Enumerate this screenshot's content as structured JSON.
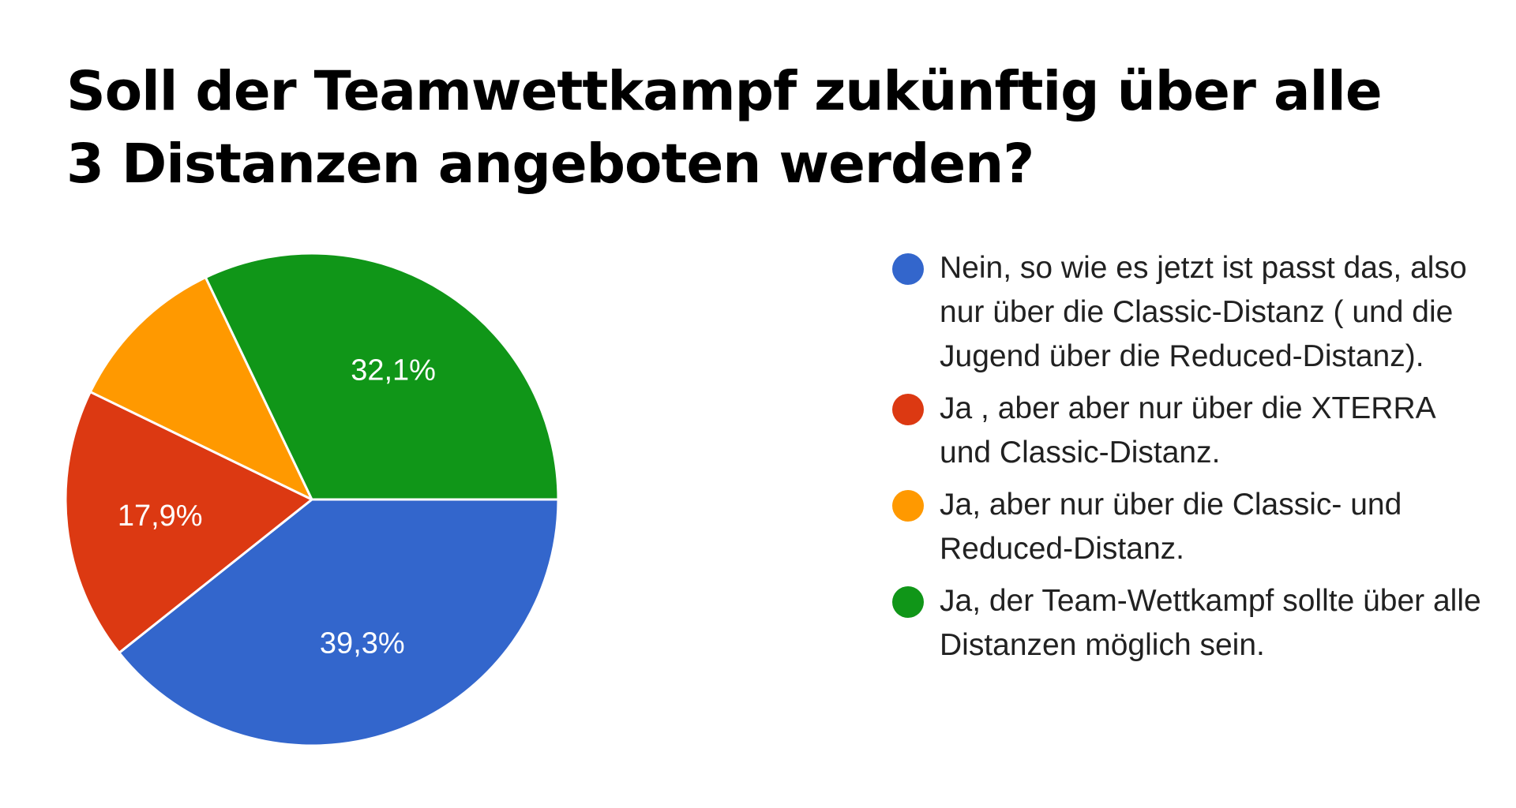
{
  "chart_data": {
    "type": "pie",
    "title_lines": [
      "Soll der Teamwettkampf zukünftig über alle",
      "3 Distanzen angeboten werden?"
    ],
    "slices": [
      {
        "label": "Nein, so wie es jetzt ist passt das, also nur über die Classic-Distanz ( und die Jugend über die Reduced-Distanz).",
        "value": 39.3,
        "value_label": "39,3%",
        "color": "#3366cc"
      },
      {
        "label": "Ja , aber aber nur über die XTERRA und Classic-Distanz.",
        "value": 17.9,
        "value_label": "17,9%",
        "color": "#dc3912"
      },
      {
        "label": "Ja, aber nur über die Classic- und Reduced-Distanz.",
        "value": 10.7,
        "value_label": "",
        "color": "#ff9900"
      },
      {
        "label": "Ja, der Team-Wettkampf sollte über alle Distanzen möglich sein.",
        "value": 32.1,
        "value_label": "32,1%",
        "color": "#109618"
      }
    ],
    "legend_position": "right"
  }
}
